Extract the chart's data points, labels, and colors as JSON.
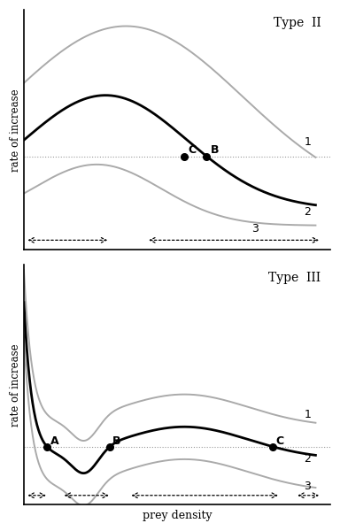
{
  "title_typeII": "Type  II",
  "title_typeIII": "Type  III",
  "xlabel": "prey density",
  "ylabel": "rate of increase",
  "bg_color": "#ffffff",
  "line_color_black": "#000000",
  "line_color_gray": "#aaaaaa",
  "hline_color": "#999999"
}
